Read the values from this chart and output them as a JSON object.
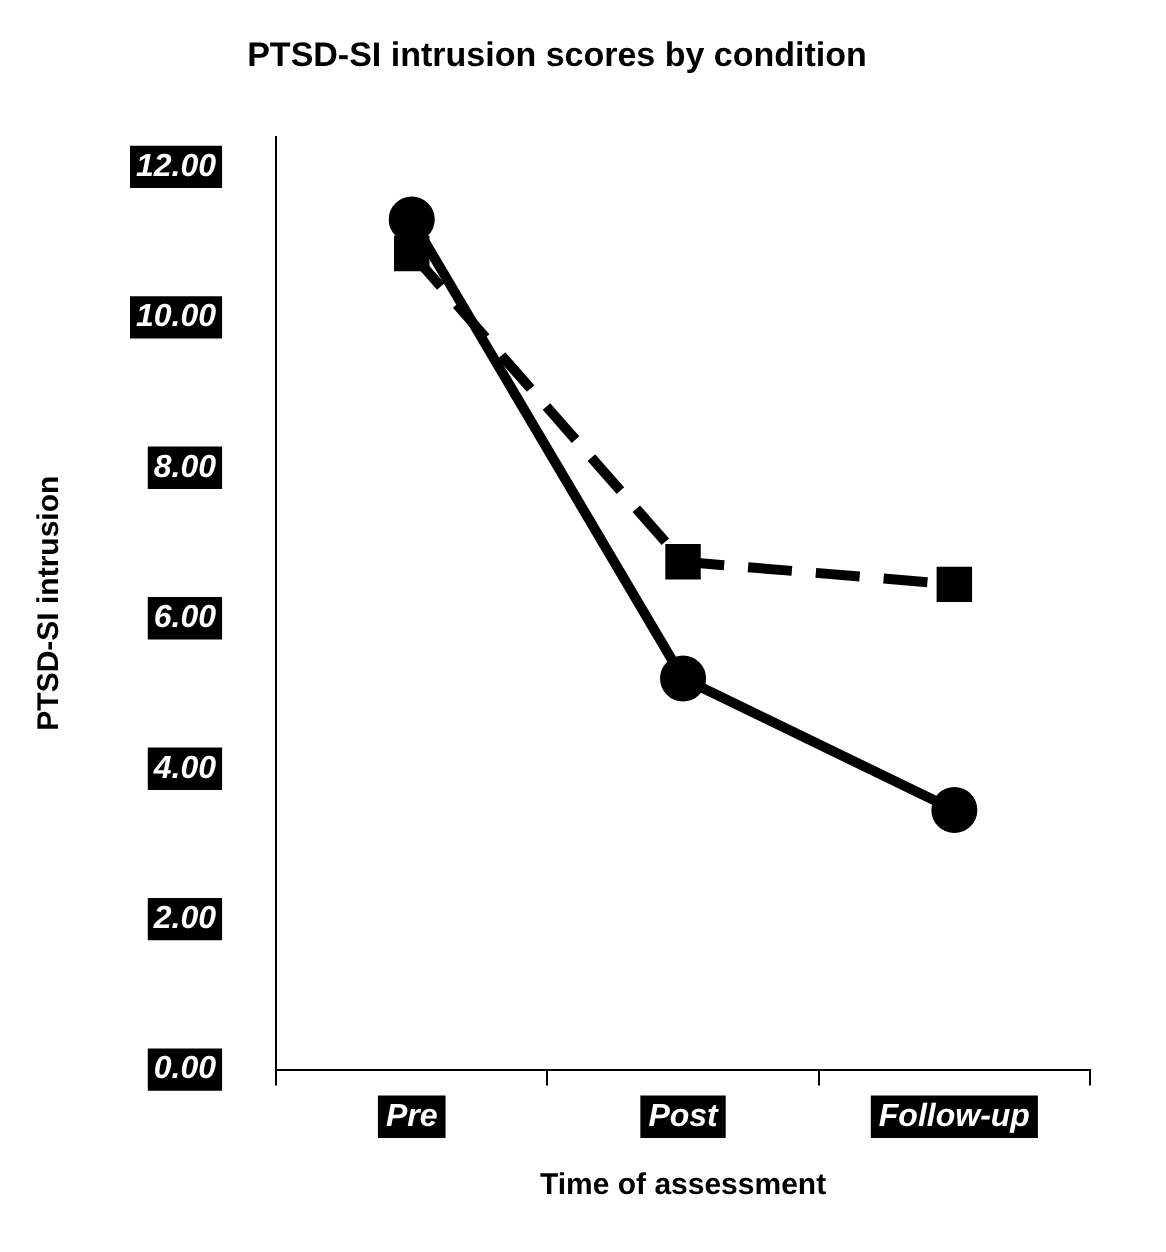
{
  "chart_data": {
    "type": "line",
    "title": "PTSD-SI intrusion scores by condition",
    "xlabel": "Time of assessment",
    "ylabel": "PTSD-SI intrusion",
    "categories": [
      "Pre",
      "Post",
      "Follow-up"
    ],
    "series": [
      {
        "color": "#000000",
        "values": [
          11.3,
          5.2,
          3.45
        ],
        "marker": "circle",
        "line_style": "solid"
      },
      {
        "color": "#000000",
        "values": [
          10.85,
          6.75,
          6.45
        ],
        "marker": "square",
        "line_style": "dashed"
      }
    ],
    "ylim": [
      0,
      12.4
    ],
    "yticks": [
      {
        "value": 0,
        "label": "0.00"
      },
      {
        "value": 2,
        "label": "2.00"
      },
      {
        "value": 4,
        "label": "4.00"
      },
      {
        "value": 6,
        "label": "6.00"
      },
      {
        "value": 8,
        "label": "8.00"
      },
      {
        "value": 10,
        "label": "10.00"
      },
      {
        "value": 12,
        "label": "12.00"
      }
    ],
    "grid": false,
    "legend": false
  }
}
